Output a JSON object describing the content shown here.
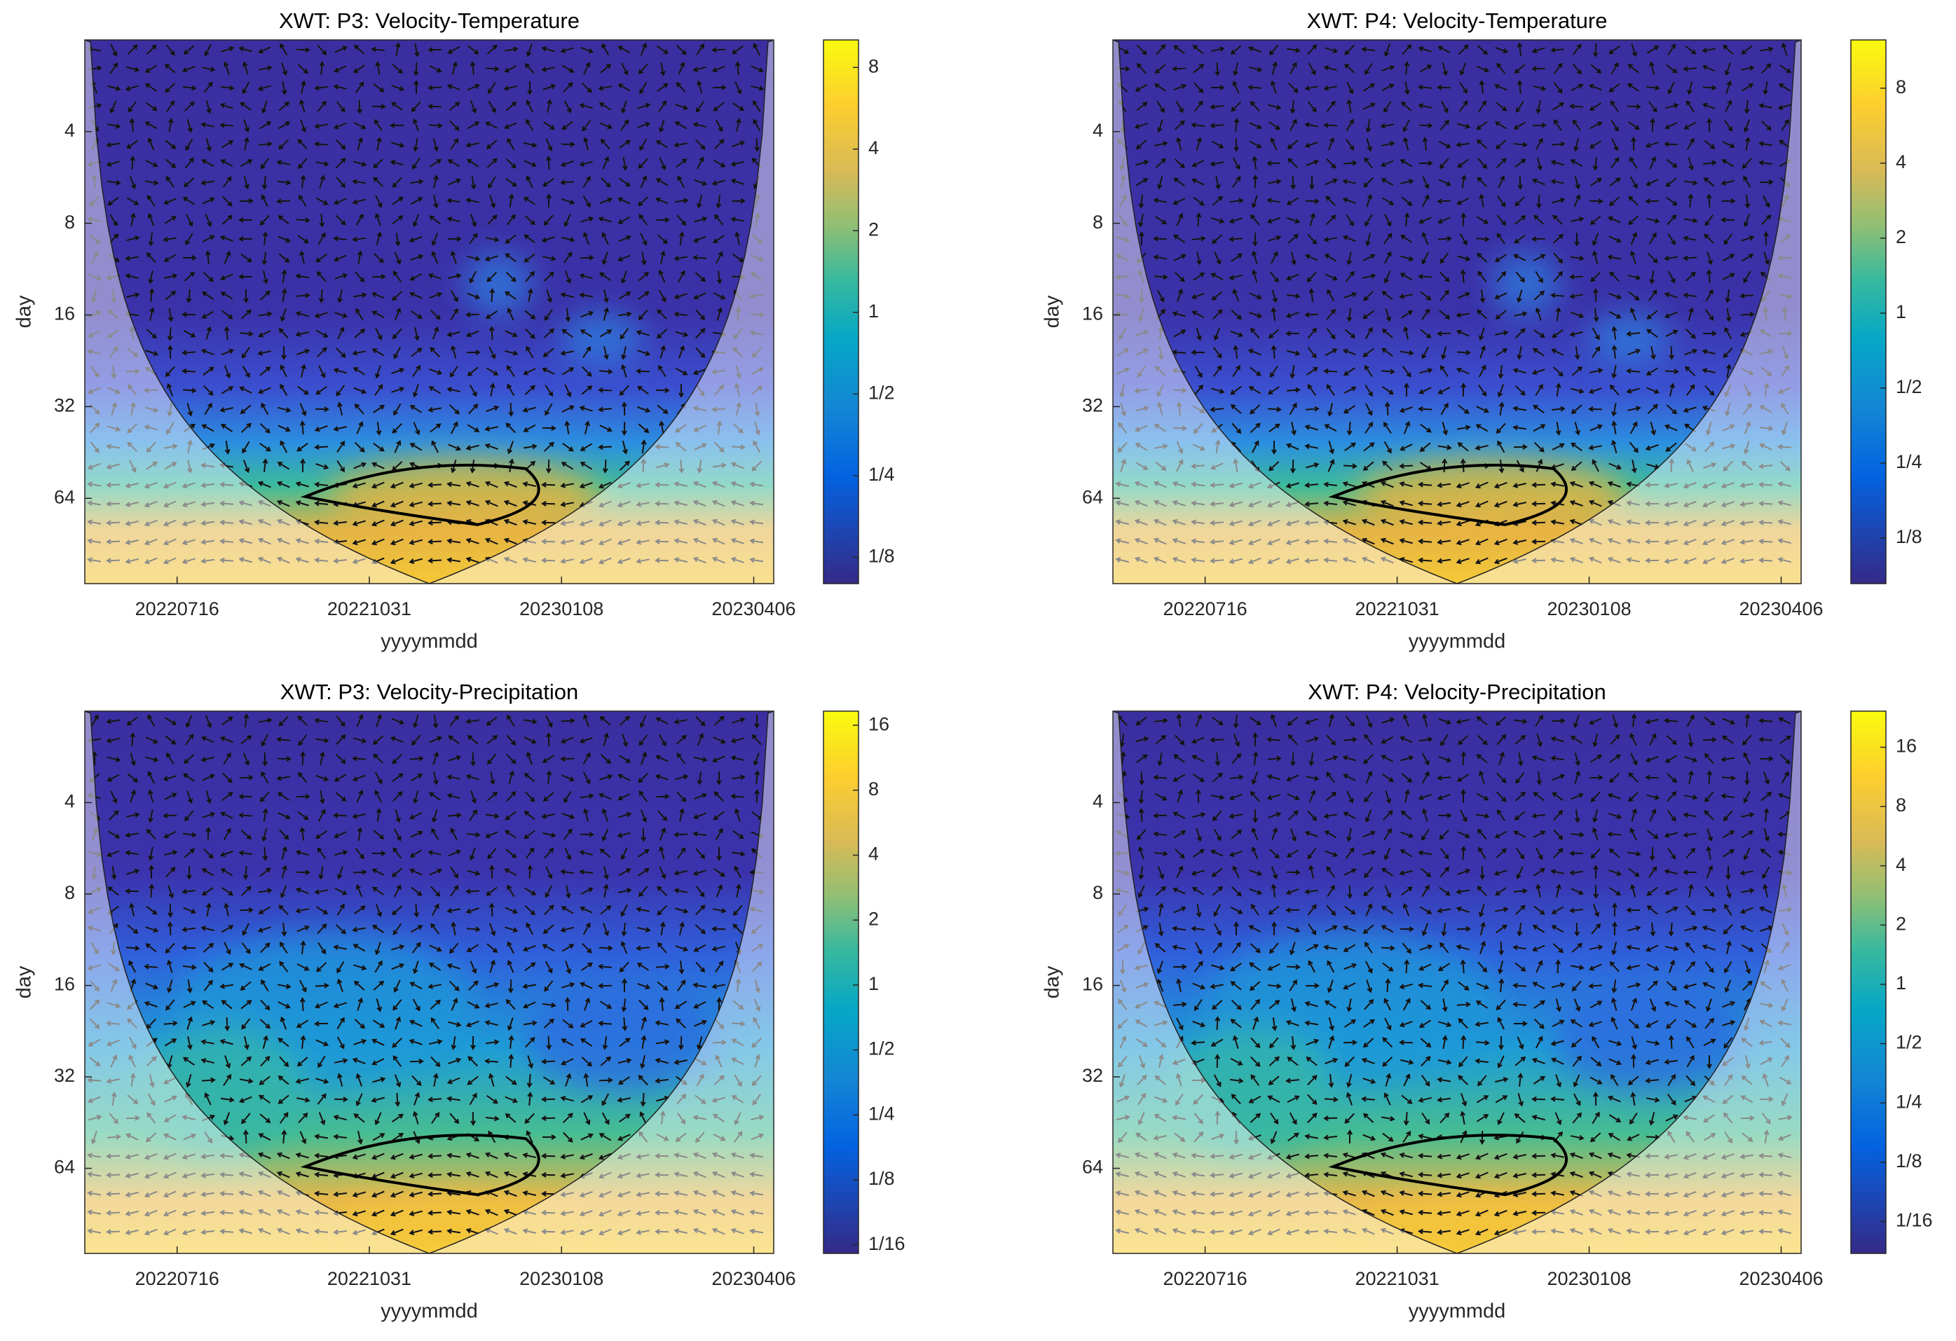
{
  "chart_data": [
    {
      "type": "wavelet",
      "title": "XWT: P3:  Velocity-Temperature",
      "xlabel": "yyyymmdd",
      "ylabel": "day",
      "categories": [
        "20220716",
        "20221031",
        "20230108",
        "20230406"
      ],
      "ylim": [
        2,
        122
      ],
      "yticks": [
        4,
        8,
        16,
        32,
        64
      ],
      "log_scale": true,
      "y_reversed": true,
      "colormap": "parula",
      "colorbar": {
        "lim": [
          0.1,
          10.1
        ],
        "ticks": [
          8,
          4,
          2,
          1,
          {
            "value": 0.5,
            "label": "1/2"
          },
          {
            "value": 0.25,
            "label": "1/4"
          },
          {
            "value": 0.125,
            "label": "1/8"
          }
        ]
      }
    },
    {
      "type": "wavelet",
      "title": "XWT: P4:  Velocity-Temperature",
      "xlabel": "yyyymmdd",
      "ylabel": "day",
      "categories": [
        "20220716",
        "20221031",
        "20230108",
        "20230406"
      ],
      "ylim": [
        2,
        122
      ],
      "yticks": [
        4,
        8,
        16,
        32,
        64
      ],
      "log_scale": true,
      "y_reversed": true,
      "colormap": "parula",
      "colorbar": {
        "lim": [
          0.082,
          12.5
        ],
        "ticks": [
          8,
          4,
          2,
          1,
          {
            "value": 0.5,
            "label": "1/2"
          },
          {
            "value": 0.25,
            "label": "1/4"
          },
          {
            "value": 0.125,
            "label": "1/8"
          }
        ]
      }
    },
    {
      "type": "wavelet",
      "title": "XWT: P3:  Velocity-Precipitation",
      "xlabel": "yyyymmdd",
      "ylabel": "day",
      "categories": [
        "20220716",
        "20221031",
        "20230108",
        "20230406"
      ],
      "ylim": [
        2,
        122
      ],
      "yticks": [
        4,
        8,
        16,
        32,
        64
      ],
      "log_scale": true,
      "y_reversed": true,
      "colormap": "parula",
      "colorbar": {
        "lim": [
          0.057,
          18.6
        ],
        "ticks": [
          16,
          8,
          4,
          2,
          1,
          {
            "value": 0.5,
            "label": "1/2"
          },
          {
            "value": 0.25,
            "label": "1/4"
          },
          {
            "value": 0.125,
            "label": "1/8"
          },
          {
            "value": 0.0625,
            "label": "1/16"
          }
        ]
      }
    },
    {
      "type": "wavelet",
      "title": "XWT: P4:  Velocity-Precipitation",
      "xlabel": "yyyymmdd",
      "ylabel": "day",
      "categories": [
        "20220716",
        "20221031",
        "20230108",
        "20230406"
      ],
      "ylim": [
        2,
        122
      ],
      "yticks": [
        4,
        8,
        16,
        32,
        64
      ],
      "log_scale": true,
      "y_reversed": true,
      "colormap": "parula",
      "colorbar": {
        "lim": [
          0.043,
          24.4
        ],
        "ticks": [
          16,
          8,
          4,
          2,
          1,
          {
            "value": 0.5,
            "label": "1/2"
          },
          {
            "value": 0.25,
            "label": "1/4"
          },
          {
            "value": 0.125,
            "label": "1/8"
          },
          {
            "value": 0.0625,
            "label": "1/16"
          }
        ]
      }
    }
  ]
}
